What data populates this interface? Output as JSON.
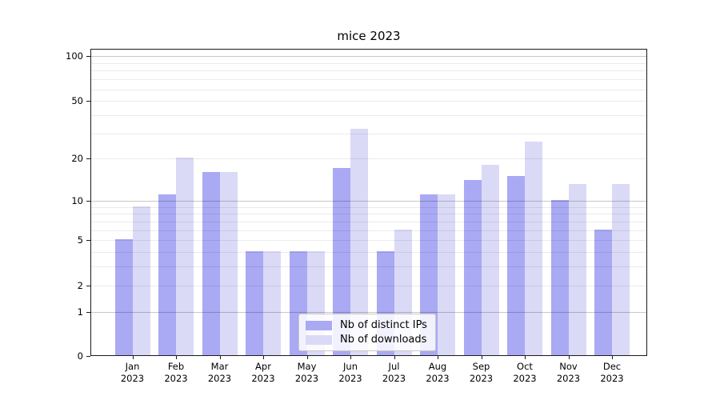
{
  "title": "mice 2023",
  "legend": {
    "items": [
      {
        "label": "Nb of distinct IPs",
        "color": "#a9a9f4"
      },
      {
        "label": "Nb of downloads",
        "color": "#dadaf7"
      }
    ]
  },
  "axes": {
    "y_tick_labels": [
      "100",
      "50",
      "20",
      "10",
      "5",
      "2",
      "1",
      "0"
    ],
    "x_tick_months": [
      "Jan",
      "Feb",
      "Mar",
      "Apr",
      "May",
      "Jun",
      "Jul",
      "Aug",
      "Sep",
      "Oct",
      "Nov",
      "Dec"
    ],
    "x_tick_year": "2023"
  },
  "chart_data": {
    "type": "bar",
    "title": "mice 2023",
    "y_scale": "log1p",
    "grid_on": true,
    "legend_position": "lower center",
    "categories": [
      "Jan 2023",
      "Feb 2023",
      "Mar 2023",
      "Apr 2023",
      "May 2023",
      "Jun 2023",
      "Jul 2023",
      "Aug 2023",
      "Sep 2023",
      "Oct 2023",
      "Nov 2023",
      "Dec 2023"
    ],
    "series": [
      {
        "name": "Nb of distinct IPs",
        "color": "#a9a9f4",
        "values": [
          5,
          11,
          16,
          4,
          4,
          17,
          4,
          11,
          14,
          15,
          10,
          6
        ]
      },
      {
        "name": "Nb of downloads",
        "color": "#dadaf7",
        "values": [
          9,
          20,
          16,
          4,
          4,
          32,
          6,
          11,
          18,
          26,
          13,
          13
        ]
      }
    ],
    "y_ticks": [
      100,
      50,
      20,
      10,
      5,
      2,
      1,
      0
    ],
    "grid": {
      "major_lines": [
        1,
        10,
        100
      ],
      "minor_lines": [
        2,
        3,
        4,
        5,
        6,
        7,
        8,
        9,
        20,
        30,
        40,
        50,
        60,
        70,
        80,
        90
      ]
    },
    "ylim": [
      0,
      112
    ]
  },
  "colors": {
    "spine": "#1a1a1a",
    "grid_major": "rgba(0,0,0,0.22)",
    "grid_minor": "rgba(0,0,0,0.08)",
    "background": "#ffffff",
    "text": "#000000"
  }
}
